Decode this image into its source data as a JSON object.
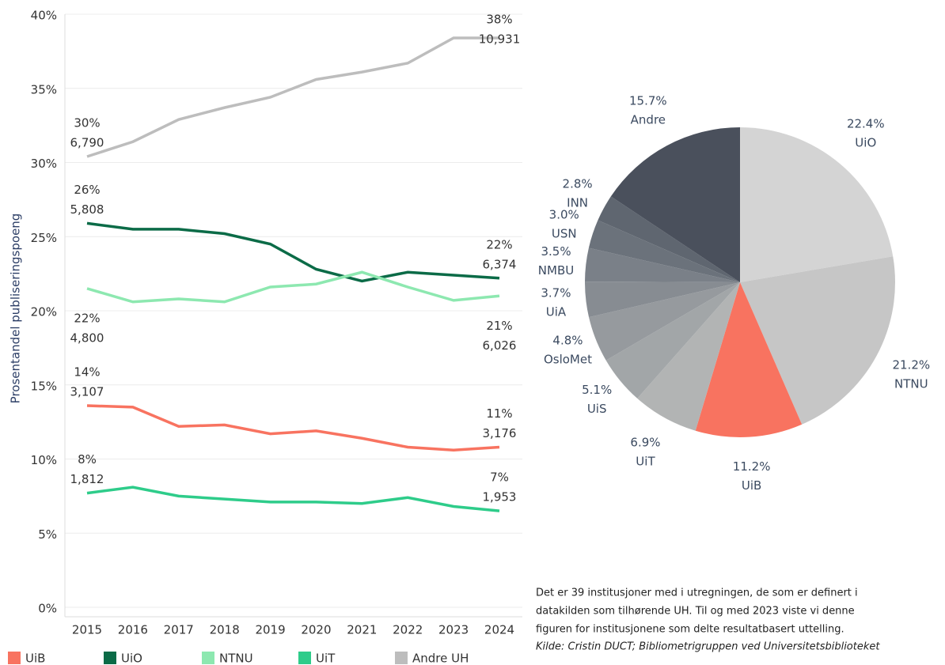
{
  "chart_data": [
    {
      "type": "line",
      "ylabel": "Prosentandel publiseringspoeng",
      "x": [
        "2015",
        "2016",
        "2017",
        "2018",
        "2019",
        "2020",
        "2021",
        "2022",
        "2023",
        "2024"
      ],
      "ylim": [
        0,
        40
      ],
      "yticks": [
        {
          "value": 0,
          "label": "0%"
        },
        {
          "value": 5,
          "label": "5%"
        },
        {
          "value": 10,
          "label": "10%"
        },
        {
          "value": 15,
          "label": "15%"
        },
        {
          "value": 20,
          "label": "20%"
        },
        {
          "value": 25,
          "label": "25%"
        },
        {
          "value": 30,
          "label": "30%"
        },
        {
          "value": 35,
          "label": "35%"
        },
        {
          "value": 40,
          "label": "40%"
        }
      ],
      "grid": true,
      "series": [
        {
          "name": "UiB",
          "color": "#f87360",
          "values": [
            13.6,
            13.5,
            12.2,
            12.3,
            11.7,
            11.9,
            11.4,
            10.8,
            10.6,
            10.8
          ],
          "value_labels": [
            "14%",
            null,
            null,
            null,
            null,
            null,
            null,
            null,
            null,
            "11%"
          ],
          "point_labels": [
            "3,107",
            null,
            null,
            null,
            null,
            null,
            null,
            null,
            null,
            "3,176"
          ]
        },
        {
          "name": "UiO",
          "color": "#0b6b47",
          "values": [
            25.9,
            25.5,
            25.5,
            25.2,
            24.5,
            22.8,
            22.0,
            22.6,
            22.4,
            22.2
          ],
          "value_labels": [
            "26%",
            null,
            null,
            null,
            null,
            null,
            null,
            null,
            null,
            "22%"
          ],
          "point_labels": [
            "5,808",
            null,
            null,
            null,
            null,
            null,
            null,
            null,
            null,
            "6,374"
          ]
        },
        {
          "name": "NTNU",
          "color": "#8de8b0",
          "values": [
            21.5,
            20.6,
            20.8,
            20.6,
            21.6,
            21.8,
            22.6,
            21.6,
            20.7,
            21.0
          ],
          "value_labels": [
            "22%",
            null,
            null,
            null,
            null,
            null,
            null,
            null,
            null,
            "21%"
          ],
          "point_labels": [
            "4,800",
            null,
            null,
            null,
            null,
            null,
            null,
            null,
            null,
            "6,026"
          ]
        },
        {
          "name": "UiT",
          "color": "#2ecc8a",
          "values": [
            7.7,
            8.1,
            7.5,
            7.3,
            7.1,
            7.1,
            7.0,
            7.4,
            6.8,
            6.5
          ],
          "value_labels": [
            "8%",
            null,
            null,
            null,
            null,
            null,
            null,
            null,
            null,
            "7%"
          ],
          "point_labels": [
            "1,812",
            null,
            null,
            null,
            null,
            null,
            null,
            null,
            null,
            "1,953"
          ]
        },
        {
          "name": "Andre UH",
          "color": "#bdbdbd",
          "values": [
            30.4,
            31.4,
            32.9,
            33.7,
            34.4,
            35.6,
            36.1,
            36.7,
            38.4,
            38.4
          ],
          "value_labels": [
            "30%",
            null,
            null,
            null,
            null,
            null,
            null,
            null,
            null,
            "38%"
          ],
          "point_labels": [
            "6,790",
            null,
            null,
            null,
            null,
            null,
            null,
            null,
            null,
            "10,931"
          ]
        }
      ]
    },
    {
      "type": "pie",
      "categories": [
        "UiO",
        "NTNU",
        "UiB",
        "UiT",
        "UiS",
        "OsloMet",
        "UiA",
        "NMBU",
        "USN",
        "INN",
        "Andre"
      ],
      "values": [
        22.4,
        21.2,
        11.2,
        6.9,
        5.1,
        4.8,
        3.7,
        3.5,
        3.0,
        2.8,
        15.7
      ],
      "value_labels": [
        "22.4%",
        "21.2%",
        "11.2%",
        "6.9%",
        "5.1%",
        "4.8%",
        "3.7%",
        "3.5%",
        "3.0%",
        "2.8%",
        "15.7%"
      ],
      "colors": [
        "#d4d4d4",
        "#c6c6c6",
        "#f87360",
        "#b2b4b4",
        "#a2a6a8",
        "#969a9e",
        "#878c92",
        "#7a8088",
        "#6b727b",
        "#5f6670",
        "#4a505c"
      ]
    }
  ],
  "note": {
    "lines": [
      "Det er 39 institusjoner med i utregningen, de som er definert i",
      "datakilden som tilhørende UH. Til og med 2023 viste vi denne",
      "figuren for institusjonene som delte resultatbasert uttelling."
    ],
    "source": "Kilde: Cristin DUCT; Bibliometrigruppen ved Universitetsbiblioteket"
  }
}
